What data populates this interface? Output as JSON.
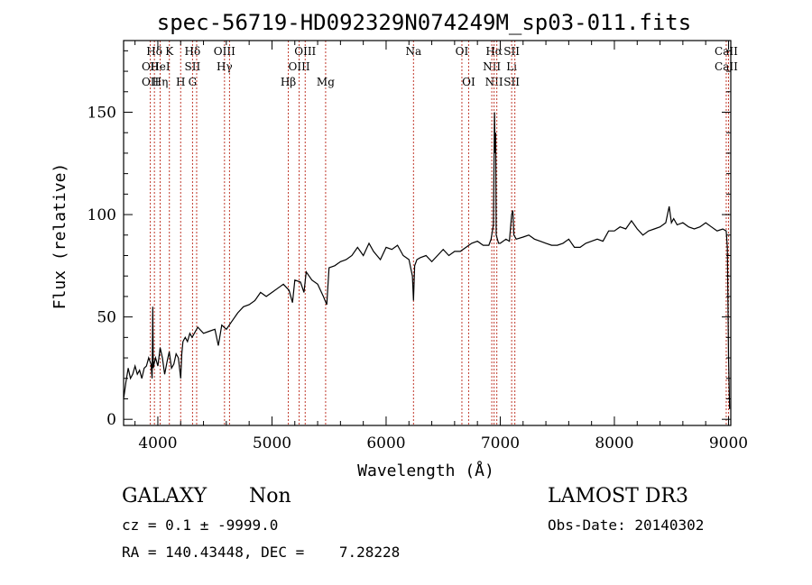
{
  "chart_data": {
    "type": "line",
    "title": "spec-56719-HD092329N074249M_sp03-011.fits",
    "xlabel": "Wavelength (Å)",
    "ylabel": "Flux (relative)",
    "xlim": [
      3700,
      9020
    ],
    "ylim": [
      -3,
      185
    ],
    "xticks": [
      "4000",
      "5000",
      "6000",
      "7000",
      "8000",
      "9000"
    ],
    "yticks": [
      "0",
      "50",
      "100",
      "150"
    ],
    "series": [
      {
        "x": [
          3700,
          3720,
          3740,
          3760,
          3780,
          3800,
          3820,
          3840,
          3860,
          3880,
          3900,
          3920,
          3940,
          3950,
          3955,
          3960,
          3970,
          3980,
          4000,
          4020,
          4040,
          4060,
          4080,
          4100,
          4120,
          4140,
          4160,
          4180,
          4200,
          4210,
          4220,
          4240,
          4260,
          4280,
          4300,
          4350,
          4400,
          4450,
          4500,
          4530,
          4560,
          4600,
          4650,
          4700,
          4750,
          4800,
          4850,
          4900,
          4950,
          5000,
          5050,
          5100,
          5150,
          5180,
          5200,
          5250,
          5280,
          5300,
          5350,
          5400,
          5450,
          5480,
          5500,
          5550,
          5600,
          5650,
          5700,
          5750,
          5800,
          5850,
          5890,
          5920,
          5950,
          6000,
          6050,
          6100,
          6150,
          6200,
          6230,
          6240,
          6250,
          6270,
          6300,
          6350,
          6400,
          6450,
          6500,
          6550,
          6600,
          6650,
          6700,
          6750,
          6800,
          6850,
          6900,
          6920,
          6940,
          6950,
          6955,
          6960,
          6965,
          6975,
          6985,
          7000,
          7050,
          7080,
          7100,
          7110,
          7120,
          7140,
          7200,
          7250,
          7300,
          7350,
          7400,
          7450,
          7500,
          7550,
          7600,
          7650,
          7700,
          7750,
          7800,
          7850,
          7900,
          7950,
          8000,
          8050,
          8100,
          8150,
          8200,
          8250,
          8300,
          8350,
          8400,
          8450,
          8480,
          8500,
          8520,
          8550,
          8600,
          8650,
          8700,
          8750,
          8800,
          8850,
          8900,
          8950,
          8980,
          8990,
          9000,
          9010
        ],
        "y": [
          10,
          18,
          25,
          20,
          22,
          26,
          22,
          24,
          20,
          25,
          26,
          30,
          27,
          20,
          55,
          25,
          28,
          30,
          26,
          35,
          30,
          22,
          28,
          33,
          25,
          27,
          32,
          30,
          20,
          32,
          38,
          40,
          38,
          42,
          40,
          45,
          42,
          43,
          44,
          36,
          46,
          44,
          48,
          52,
          55,
          56,
          58,
          62,
          60,
          62,
          64,
          66,
          63,
          57,
          68,
          67,
          62,
          72,
          68,
          66,
          60,
          56,
          74,
          75,
          77,
          78,
          80,
          84,
          80,
          86,
          82,
          80,
          78,
          84,
          83,
          85,
          80,
          78,
          70,
          58,
          75,
          78,
          79,
          80,
          77,
          80,
          83,
          80,
          82,
          82,
          84,
          86,
          87,
          85,
          85,
          88,
          95,
          150,
          130,
          140,
          90,
          88,
          86,
          86,
          88,
          87,
          100,
          102,
          90,
          88,
          89,
          90,
          88,
          87,
          86,
          85,
          85,
          86,
          88,
          84,
          84,
          86,
          87,
          88,
          87,
          92,
          92,
          94,
          93,
          97,
          93,
          90,
          92,
          93,
          94,
          96,
          104,
          96,
          98,
          95,
          96,
          94,
          93,
          94,
          96,
          94,
          92,
          93,
          92,
          84,
          30,
          5
        ]
      }
    ],
    "lines": [
      {
        "w": 3934,
        "l1": "",
        "l2": "OII",
        "l3": "OII"
      },
      {
        "w": 3970,
        "l1": "Hδ",
        "l2": "",
        "l3": ""
      },
      {
        "w": 4020,
        "l1": "",
        "l2": "HeI",
        "l3": "Hη"
      },
      {
        "w": 4101,
        "l1": "K",
        "l2": "",
        "l3": ""
      },
      {
        "w": 4200,
        "l1": "",
        "l2": "",
        "l3": "H"
      },
      {
        "w": 4304,
        "l1": "Hδ",
        "l2": "SII",
        "l3": "G"
      },
      {
        "w": 4340,
        "l1": "",
        "l2": "",
        "l3": ""
      },
      {
        "w": 4584,
        "l1": "OIII",
        "l2": "Hγ",
        "l3": ""
      },
      {
        "w": 4628,
        "l1": "",
        "l2": "",
        "l3": ""
      },
      {
        "w": 5143,
        "l1": "",
        "l2": "",
        "l3": "Hβ"
      },
      {
        "w": 5238,
        "l1": "",
        "l2": "OIII",
        "l3": ""
      },
      {
        "w": 5291,
        "l1": "OIII",
        "l2": "",
        "l3": ""
      },
      {
        "w": 5470,
        "l1": "",
        "l2": "",
        "l3": "Mg"
      },
      {
        "w": 6240,
        "l1": "Na",
        "l2": "",
        "l3": ""
      },
      {
        "w": 6664,
        "l1": "OI",
        "l2": "",
        "l3": ""
      },
      {
        "w": 6723,
        "l1": "",
        "l2": "",
        "l3": "OI"
      },
      {
        "w": 6926,
        "l1": "",
        "l2": "NII",
        "l3": ""
      },
      {
        "w": 6946,
        "l1": "Hα",
        "l2": "",
        "l3": "NII"
      },
      {
        "w": 6970,
        "l1": "",
        "l2": "",
        "l3": ""
      },
      {
        "w": 7100,
        "l1": "SII",
        "l2": "Li",
        "l3": "SII"
      },
      {
        "w": 7128,
        "l1": "",
        "l2": "",
        "l3": ""
      },
      {
        "w": 8980,
        "l1": "CaII",
        "l2": "CaII",
        "l3": ""
      },
      {
        "w": 9000,
        "l1": "",
        "l2": "",
        "l3": ""
      }
    ]
  },
  "info": {
    "class": "GALAXY",
    "subclass": "Non",
    "cz": "cz = 0.1 ± -9999.0",
    "radec": "RA = 140.43448, DEC =    7.28228",
    "survey": "LAMOST DR3",
    "obsdate": "Obs-Date: 20140302"
  }
}
